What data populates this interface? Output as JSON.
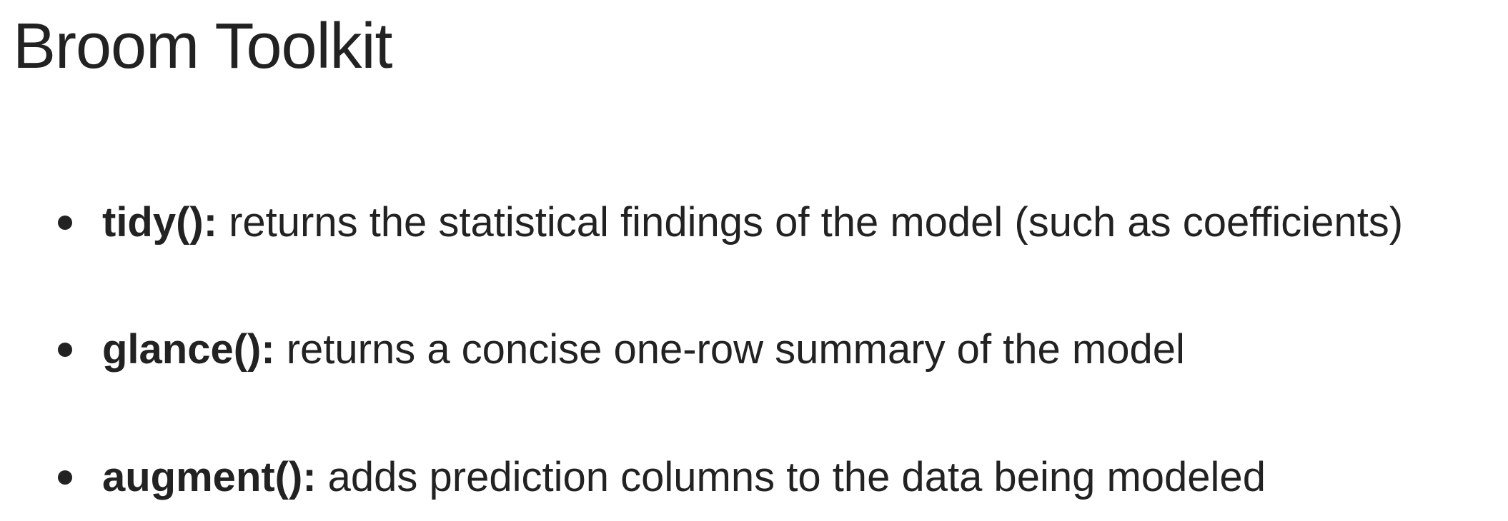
{
  "title": "Broom Toolkit",
  "items": [
    {
      "term": "tidy():",
      "description": "returns the statistical findings of the model (such as coefficients)"
    },
    {
      "term": "glance():",
      "description": "returns a concise one-row summary of the model"
    },
    {
      "term": "augment():",
      "description": "adds prediction columns to the data being modeled"
    }
  ]
}
